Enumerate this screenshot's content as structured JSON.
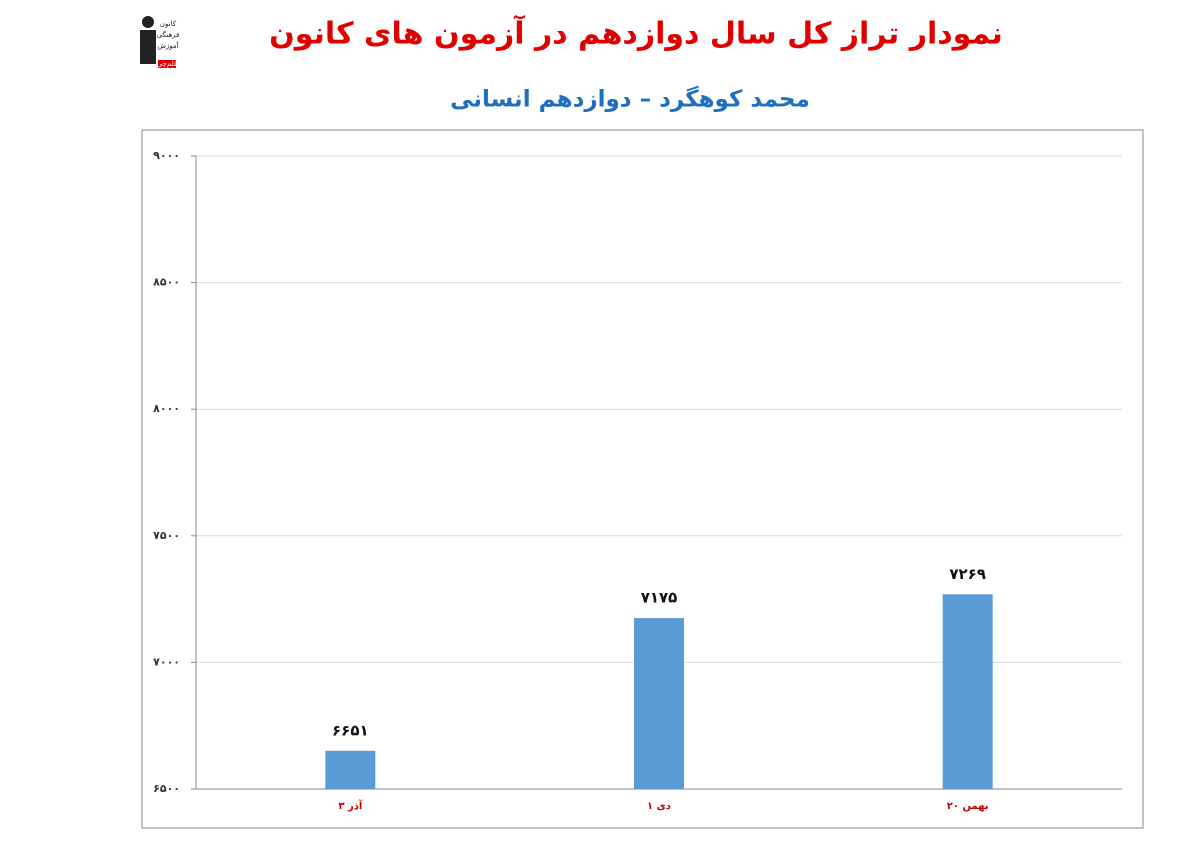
{
  "chart_data": {
    "type": "bar",
    "title": "نمودار تراز کل سال دوازدهم در آزمون های کانون",
    "subtitle": "محمد کوهگرد – دوازدهم انسانی",
    "logo_text": [
      "کانون",
      "فرهنگی",
      "آموزش",
      "قلم‌چی"
    ],
    "categories": [
      "۳ آذر",
      "۱ دی",
      "۲۰ بهمن"
    ],
    "values": [
      6651,
      7175,
      7269
    ],
    "value_labels": [
      "۶۶۵۱",
      "۷۱۷۵",
      "۷۲۶۹"
    ],
    "color": "#5b9bd5",
    "ylim": [
      6500,
      9000
    ],
    "yticks": [
      {
        "value": 6500,
        "label": "۶۵۰۰"
      },
      {
        "value": 7000,
        "label": "۷۰۰۰"
      },
      {
        "value": 7500,
        "label": "۷۵۰۰"
      },
      {
        "value": 8000,
        "label": "۸۰۰۰"
      },
      {
        "value": 8500,
        "label": "۸۵۰۰"
      },
      {
        "value": 9000,
        "label": "۹۰۰۰"
      }
    ],
    "grid": true
  }
}
